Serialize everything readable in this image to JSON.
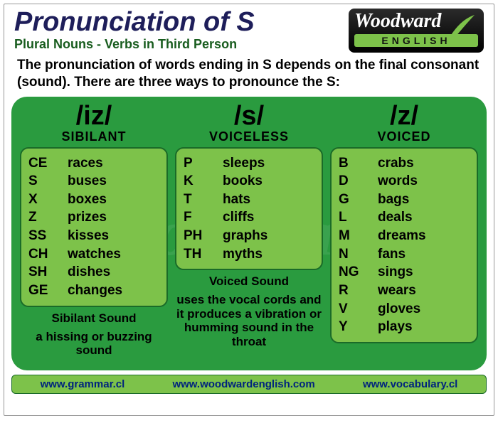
{
  "title": "Pronunciation of S",
  "subtitle": "Plural Nouns - Verbs in Third Person",
  "logo": {
    "brand": "Woodward",
    "sub": "ENGLISH"
  },
  "intro": "The pronunciation of words ending in S depends on the final consonant (sound). There are three ways to pronounce the S:",
  "columns": [
    {
      "sound": "/iz/",
      "category": "SIBILANT",
      "rows": [
        {
          "ending": "CE",
          "example": "races"
        },
        {
          "ending": "S",
          "example": "buses"
        },
        {
          "ending": "X",
          "example": "boxes"
        },
        {
          "ending": "Z",
          "example": "prizes"
        },
        {
          "ending": "SS",
          "example": "kisses"
        },
        {
          "ending": "CH",
          "example": "watches"
        },
        {
          "ending": "SH",
          "example": "dishes"
        },
        {
          "ending": "GE",
          "example": "changes"
        }
      ],
      "note_title": "Sibilant Sound",
      "note_body": "a hissing or buzzing sound"
    },
    {
      "sound": "/s/",
      "category": "VOICELESS",
      "rows": [
        {
          "ending": "P",
          "example": "sleeps"
        },
        {
          "ending": "K",
          "example": "books"
        },
        {
          "ending": "T",
          "example": "hats"
        },
        {
          "ending": "F",
          "example": "cliffs"
        },
        {
          "ending": "PH",
          "example": "graphs"
        },
        {
          "ending": "TH",
          "example": "myths"
        }
      ],
      "note_title": "Voiced Sound",
      "note_body": "uses the vocal cords and it produces a vibration or humming sound in the throat"
    },
    {
      "sound": "/z/",
      "category": "VOICED",
      "rows": [
        {
          "ending": "B",
          "example": "crabs"
        },
        {
          "ending": "D",
          "example": "words"
        },
        {
          "ending": "G",
          "example": "bags"
        },
        {
          "ending": "L",
          "example": "deals"
        },
        {
          "ending": "M",
          "example": "dreams"
        },
        {
          "ending": "N",
          "example": "fans"
        },
        {
          "ending": "NG",
          "example": "sings"
        },
        {
          "ending": "R",
          "example": "wears"
        },
        {
          "ending": "V",
          "example": "gloves"
        },
        {
          "ending": "Y",
          "example": "plays"
        }
      ],
      "note_title": "",
      "note_body": ""
    }
  ],
  "footer": [
    "www.grammar.cl",
    "www.woodwardenglish.com",
    "www.vocabulary.cl"
  ],
  "watermark": "Woodward",
  "colors": {
    "panel": "#2a9b3f",
    "box": "#7dc24a",
    "border": "#1a6b28",
    "title": "#1e1e5a",
    "subtitle": "#185c1e"
  }
}
